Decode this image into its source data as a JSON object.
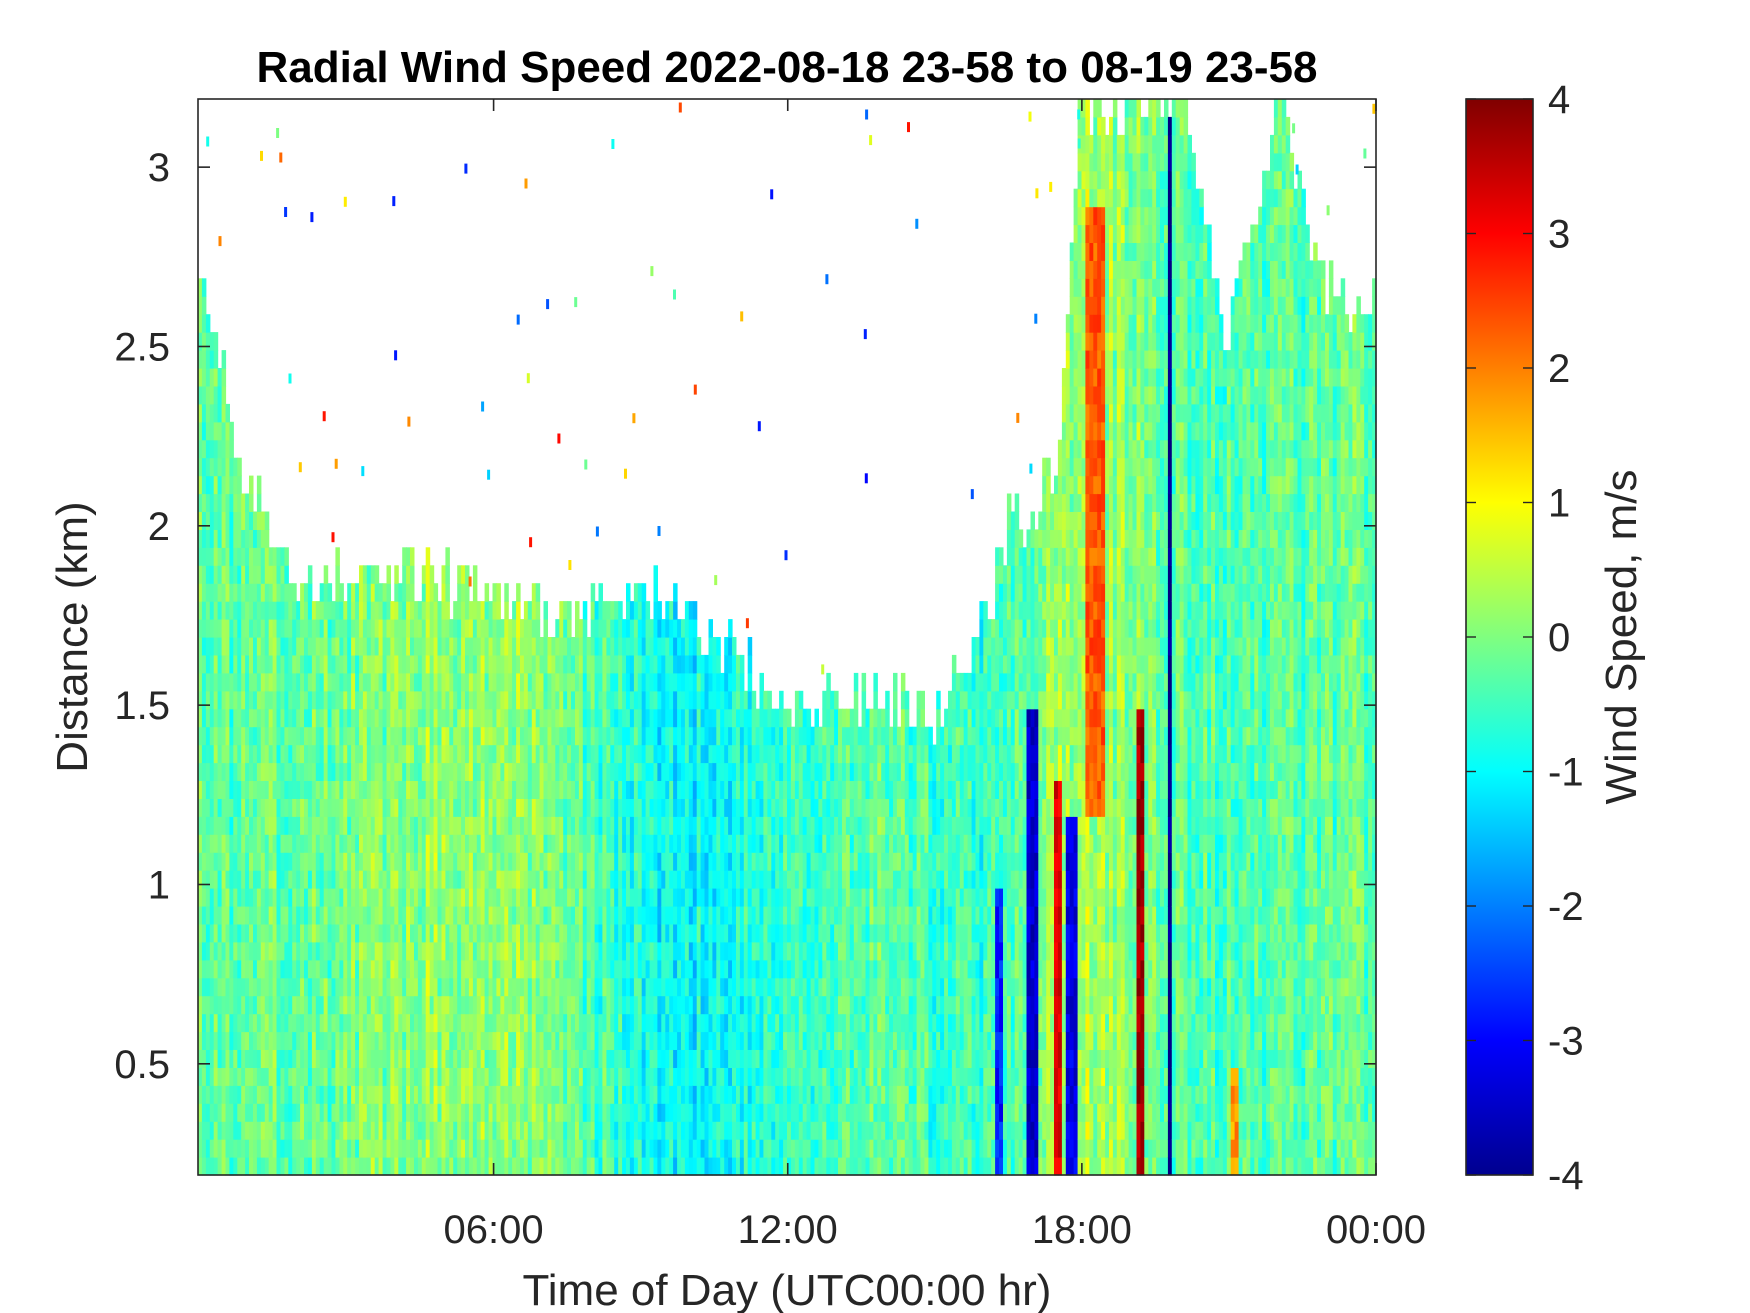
{
  "chart_data": {
    "type": "heatmap",
    "title": "Radial Wind Speed 2022-08-18 23-58 to 08-19 23-58",
    "xlabel": "Time of Day (UTC00:00 hr)",
    "ylabel": "Distance (km)",
    "x_ticks": [
      {
        "value": 6,
        "label": "06:00"
      },
      {
        "value": 12,
        "label": "12:00"
      },
      {
        "value": 18,
        "label": "18:00"
      },
      {
        "value": 24,
        "label": "00:00"
      }
    ],
    "y_ticks": [
      {
        "value": 0.5,
        "label": "0.5"
      },
      {
        "value": 1,
        "label": "1"
      },
      {
        "value": 1.5,
        "label": "1.5"
      },
      {
        "value": 2,
        "label": "2"
      },
      {
        "value": 2.5,
        "label": "2.5"
      },
      {
        "value": 3,
        "label": "3"
      }
    ],
    "xlim": [
      -0.03,
      24
    ],
    "ylim": [
      0.19,
      3.19
    ],
    "colorbar": {
      "label": "Wind Speed, m/s",
      "range": [
        -4,
        4
      ],
      "colormap": "jet",
      "ticks": [
        {
          "value": -4,
          "label": "-4"
        },
        {
          "value": -3,
          "label": "-3"
        },
        {
          "value": -2,
          "label": "-2"
        },
        {
          "value": -1,
          "label": "-1"
        },
        {
          "value": 0,
          "label": "0"
        },
        {
          "value": 1,
          "label": "1"
        },
        {
          "value": 2,
          "label": "2"
        },
        {
          "value": 3,
          "label": "3"
        },
        {
          "value": 4,
          "label": "4"
        }
      ]
    },
    "data_top_profile": [
      {
        "hour": 0,
        "top_km": 2.7
      },
      {
        "hour": 0.5,
        "top_km": 2.4
      },
      {
        "hour": 1,
        "top_km": 2.1
      },
      {
        "hour": 2,
        "top_km": 1.85
      },
      {
        "hour": 3,
        "top_km": 1.85
      },
      {
        "hour": 4,
        "top_km": 1.9
      },
      {
        "hour": 6,
        "top_km": 1.8
      },
      {
        "hour": 8,
        "top_km": 1.75
      },
      {
        "hour": 9,
        "top_km": 1.85
      },
      {
        "hour": 10,
        "top_km": 1.75
      },
      {
        "hour": 11,
        "top_km": 1.65
      },
      {
        "hour": 12,
        "top_km": 1.5
      },
      {
        "hour": 13,
        "top_km": 1.5
      },
      {
        "hour": 14,
        "top_km": 1.55
      },
      {
        "hour": 15,
        "top_km": 1.45
      },
      {
        "hour": 16,
        "top_km": 1.75
      },
      {
        "hour": 16.5,
        "top_km": 2.0
      },
      {
        "hour": 17,
        "top_km": 2.05
      },
      {
        "hour": 17.5,
        "top_km": 2.2
      },
      {
        "hour": 18,
        "top_km": 3.19
      },
      {
        "hour": 19,
        "top_km": 3.19
      },
      {
        "hour": 20,
        "top_km": 3.19
      },
      {
        "hour": 21,
        "top_km": 2.5
      },
      {
        "hour": 22,
        "top_km": 3.19
      },
      {
        "hour": 23,
        "top_km": 2.65
      },
      {
        "hour": 24,
        "top_km": 2.6
      }
    ],
    "background_speed_profile": [
      {
        "hour": 0,
        "speed": -0.3
      },
      {
        "hour": 3,
        "speed": -0.1
      },
      {
        "hour": 5,
        "speed": 0.2
      },
      {
        "hour": 7,
        "speed": 0.1
      },
      {
        "hour": 9,
        "speed": -0.8
      },
      {
        "hour": 10,
        "speed": -1.0
      },
      {
        "hour": 12,
        "speed": -0.6
      },
      {
        "hour": 14,
        "speed": -0.3
      },
      {
        "hour": 16,
        "speed": -0.6
      },
      {
        "hour": 18,
        "speed": 0.4
      },
      {
        "hour": 20,
        "speed": -0.3
      },
      {
        "hour": 22,
        "speed": -0.4
      },
      {
        "hour": 24,
        "speed": -0.2
      }
    ],
    "bands": [
      {
        "hour": 16.3,
        "half_width_hr": 0.08,
        "speed": -2.8,
        "from_km": 0.19,
        "to_km": 1.0
      },
      {
        "hour": 17.0,
        "half_width_hr": 0.12,
        "speed": -3.4,
        "from_km": 0.19,
        "to_km": 1.5
      },
      {
        "hour": 17.5,
        "half_width_hr": 0.08,
        "speed": 3.2,
        "from_km": 0.19,
        "to_km": 1.3
      },
      {
        "hour": 17.8,
        "half_width_hr": 0.15,
        "speed": -3.2,
        "from_km": 0.19,
        "to_km": 1.2
      },
      {
        "hour": 18.3,
        "half_width_hr": 0.2,
        "speed": 2.3,
        "from_km": 1.2,
        "to_km": 2.9
      },
      {
        "hour": 19.2,
        "half_width_hr": 0.1,
        "speed": 3.7,
        "from_km": 0.19,
        "to_km": 1.5
      },
      {
        "hour": 19.8,
        "half_width_hr": 0.03,
        "speed": -4.0,
        "from_km": 0.19,
        "to_km": 3.19
      },
      {
        "hour": 21.1,
        "half_width_hr": 0.08,
        "speed": 1.8,
        "from_km": 0.19,
        "to_km": 0.5
      }
    ],
    "grid": false,
    "legend": "colorbar-right"
  }
}
